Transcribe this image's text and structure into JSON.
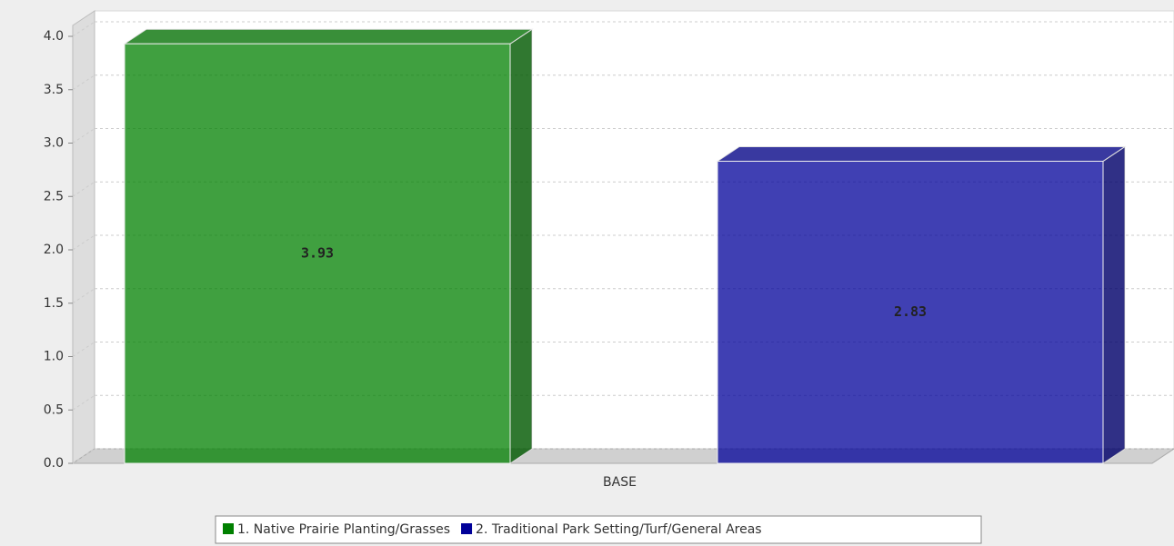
{
  "chart_data": {
    "type": "bar3d",
    "categories": [
      "BASE"
    ],
    "series": [
      {
        "name": "1. Native Prairie Planting/Grasses",
        "color": "#008000",
        "values": [
          3.93
        ]
      },
      {
        "name": "2. Traditional Park Setting/Turf/General Areas",
        "color": "#000099",
        "values": [
          2.83
        ]
      }
    ],
    "ylim": [
      0,
      4
    ],
    "yticks": [
      {
        "value": 0,
        "label": "0.0"
      },
      0.5,
      {
        "value": 1,
        "label": "1.0"
      },
      1.5,
      {
        "value": 2,
        "label": "2.0"
      },
      2.5,
      {
        "value": 3,
        "label": "3.0"
      },
      3.5,
      {
        "value": 4,
        "label": "4.0"
      }
    ],
    "grid": true,
    "legend": "bottom"
  }
}
